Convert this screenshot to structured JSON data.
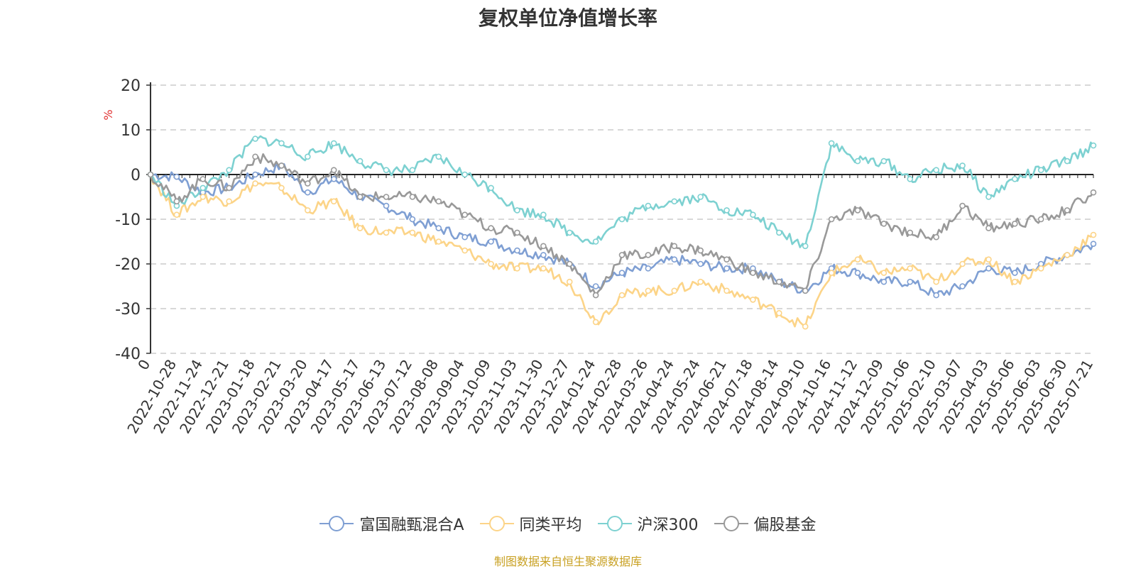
{
  "chart_data": {
    "type": "line",
    "title": "复权单位净值增长率",
    "xlabel": "",
    "ylabel": "%",
    "ylim": [
      -40,
      20
    ],
    "yticks": [
      20,
      10,
      0,
      -10,
      -20,
      -30,
      -40
    ],
    "grid": true,
    "legend_position": "bottom",
    "x_ticks": [
      "0",
      "2022-10-28",
      "2022-11-24",
      "2022-12-21",
      "2023-01-18",
      "2023-02-21",
      "2023-03-20",
      "2023-04-17",
      "2023-05-17",
      "2023-06-13",
      "2023-07-12",
      "2023-08-08",
      "2023-09-04",
      "2023-10-09",
      "2023-11-03",
      "2023-11-30",
      "2023-12-27",
      "2024-01-24",
      "2024-02-28",
      "2024-03-26",
      "2024-04-24",
      "2024-05-24",
      "2024-06-21",
      "2024-07-18",
      "2024-08-14",
      "2024-09-10",
      "2024-10-16",
      "2024-11-12",
      "2024-12-09",
      "2025-01-06",
      "2025-02-10",
      "2025-03-07",
      "2025-04-03",
      "2025-05-06",
      "2025-06-03",
      "2025-06-30",
      "2025-07-21"
    ],
    "x": [
      "0",
      "2022-10-28",
      "2022-11-24",
      "2022-12-21",
      "2023-01-18",
      "2023-02-21",
      "2023-03-20",
      "2023-04-17",
      "2023-05-17",
      "2023-06-13",
      "2023-07-12",
      "2023-08-08",
      "2023-09-04",
      "2023-10-09",
      "2023-11-03",
      "2023-11-30",
      "2023-12-27",
      "2024-01-24",
      "2024-02-28",
      "2024-03-26",
      "2024-04-24",
      "2024-05-24",
      "2024-06-21",
      "2024-07-18",
      "2024-08-14",
      "2024-09-10",
      "2024-10-16",
      "2024-11-12",
      "2024-12-09",
      "2025-01-06",
      "2025-02-10",
      "2025-03-07",
      "2025-04-03",
      "2025-05-06",
      "2025-06-03",
      "2025-06-30",
      "2025-07-21"
    ],
    "series": [
      {
        "name": "富国融甄混合A",
        "color": "#7f9fd3",
        "values": [
          0,
          -0.5,
          -4,
          -3,
          0,
          2,
          -4,
          -1,
          -5,
          -7,
          -10,
          -12,
          -14,
          -15,
          -17,
          -18,
          -20,
          -25,
          -22,
          -21,
          -19,
          -20,
          -21,
          -21,
          -24,
          -26,
          -21,
          -22,
          -24,
          -24,
          -27,
          -25,
          -21,
          -22,
          -20,
          -18,
          -15.5
        ]
      },
      {
        "name": "同类平均",
        "color": "#fcd488",
        "values": [
          0,
          -9,
          -5,
          -6,
          -2,
          -3,
          -8,
          -6,
          -12,
          -13,
          -13,
          -15,
          -17,
          -20,
          -21,
          -21,
          -24,
          -33,
          -27,
          -26,
          -26,
          -24,
          -26,
          -28,
          -31,
          -34,
          -22,
          -19,
          -22,
          -21,
          -24,
          -20,
          -19,
          -24,
          -21,
          -18,
          -13.5
        ]
      },
      {
        "name": "沪深300",
        "color": "#7dd1d1",
        "values": [
          0,
          -7,
          -3,
          1,
          8,
          7,
          4,
          7,
          3,
          1,
          1,
          4,
          0,
          -3,
          -8,
          -9,
          -13,
          -15,
          -10,
          -7,
          -6,
          -5,
          -8,
          -9,
          -13,
          -16,
          7,
          3,
          3,
          -1,
          1,
          2,
          -5,
          -1,
          1,
          3,
          6.5
        ]
      },
      {
        "name": "偏股基金",
        "color": "#999999",
        "values": [
          0,
          -6,
          -1,
          -3,
          4,
          2,
          -2,
          1,
          -5,
          -5,
          -5,
          -6,
          -9,
          -12,
          -13,
          -16,
          -20,
          -27,
          -18,
          -18,
          -16,
          -17,
          -19,
          -22,
          -24,
          -26,
          -10,
          -8,
          -11,
          -13,
          -14,
          -7,
          -12,
          -11,
          -10,
          -8,
          -4
        ]
      }
    ]
  },
  "legend": {
    "items": [
      "富国融甄混合A",
      "同类平均",
      "沪深300",
      "偏股基金"
    ]
  },
  "source_note": "制图数据来自恒生聚源数据库"
}
